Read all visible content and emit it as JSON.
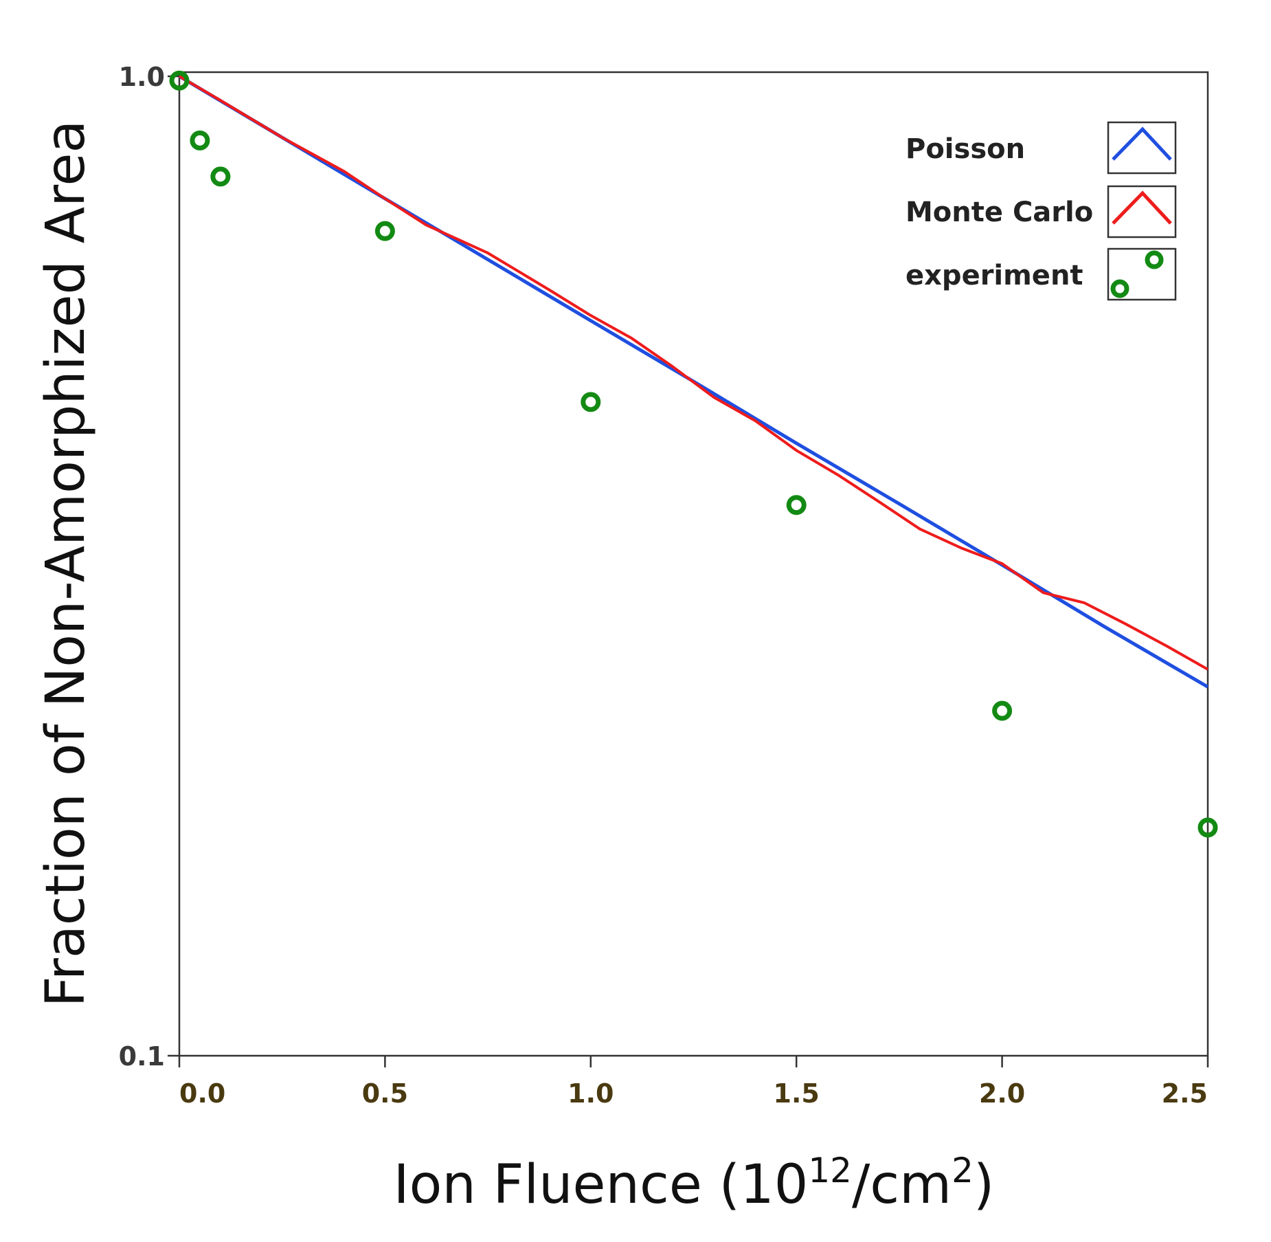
{
  "chart_data": {
    "type": "line",
    "title": "",
    "xlabel": "Ion Fluence (10",
    "xlabel_sup1": "12",
    "xlabel_mid": "/cm",
    "xlabel_sup2": "2",
    "xlabel_end": ")",
    "ylabel": "Fraction of Non-Amorphized Area",
    "xlim": [
      0,
      2.5
    ],
    "ylim": [
      0.1,
      1.0
    ],
    "yscale": "log",
    "x_ticks": [
      0.0,
      0.5,
      1.0,
      1.5,
      2.0,
      2.5
    ],
    "x_tick_labels": [
      "0.0",
      "0.5",
      "1.0",
      "1.5",
      "2.0",
      "2.5"
    ],
    "y_ticks": [
      1.0,
      0.1
    ],
    "y_tick_labels": [
      "1.0",
      "0.1"
    ],
    "legend_position": "top-right",
    "series": [
      {
        "name": "Poisson",
        "color": "#1f4fe0",
        "style": "line",
        "x": [
          0.0,
          0.25,
          0.5,
          0.75,
          1.0,
          1.25,
          1.5,
          1.75,
          2.0,
          2.25,
          2.5
        ],
        "y": [
          1.0,
          0.866,
          0.75,
          0.65,
          0.563,
          0.488,
          0.422,
          0.366,
          0.317,
          0.274,
          0.238
        ]
      },
      {
        "name": "Monte Carlo",
        "color": "#ee1c1c",
        "style": "line",
        "x": [
          0.0,
          0.1,
          0.25,
          0.4,
          0.5,
          0.6,
          0.75,
          0.9,
          1.0,
          1.1,
          1.2,
          1.3,
          1.4,
          1.5,
          1.6,
          1.7,
          1.8,
          1.9,
          2.0,
          2.1,
          2.2,
          2.3,
          2.4,
          2.5
        ],
        "y": [
          1.0,
          0.945,
          0.866,
          0.8,
          0.75,
          0.705,
          0.66,
          0.605,
          0.57,
          0.54,
          0.505,
          0.47,
          0.445,
          0.415,
          0.392,
          0.368,
          0.345,
          0.33,
          0.318,
          0.297,
          0.29,
          0.276,
          0.262,
          0.248
        ]
      },
      {
        "name": "experiment",
        "color": "#138a13",
        "style": "scatter",
        "x": [
          0.0,
          0.05,
          0.1,
          0.5,
          1.0,
          1.5,
          2.0,
          2.5
        ],
        "y": [
          0.99,
          0.86,
          0.79,
          0.695,
          0.465,
          0.365,
          0.225,
          0.171
        ]
      }
    ]
  }
}
